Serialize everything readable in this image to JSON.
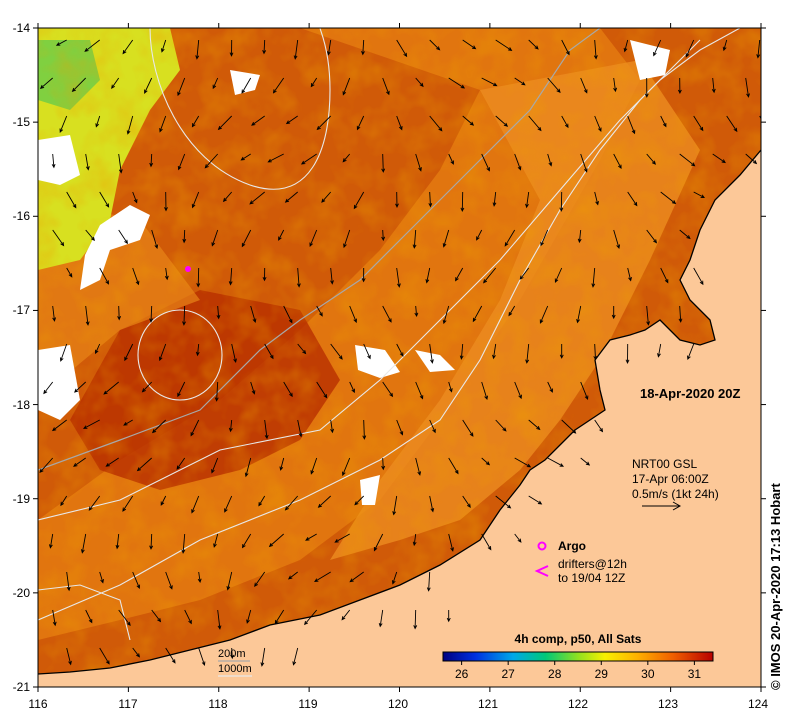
{
  "map": {
    "lon_ticks": [
      "116",
      "117",
      "118",
      "119",
      "120",
      "121",
      "122",
      "123",
      "124"
    ],
    "lat_ticks": [
      "-14",
      "-15",
      "-16",
      "-17",
      "-18",
      "-19",
      "-20",
      "-21"
    ],
    "lon_range": [
      116,
      124
    ],
    "lat_range": [
      -21,
      -14
    ],
    "timestamp": "18-Apr-2020 20Z",
    "current_legend": {
      "line1": "NRT00 GSL",
      "line2": "17-Apr 06:00Z",
      "line3": "0.5m/s (1kt 24h)"
    },
    "argo_label": "Argo",
    "drifters_line1": "drifters@12h",
    "drifters_line2": "to 19/04 12Z",
    "isobath_200": "200m",
    "isobath_1000": "1000m",
    "colorbar": {
      "title": "4h comp, p50, All Sats",
      "ticks": [
        "26",
        "27",
        "28",
        "29",
        "30",
        "31"
      ],
      "range": [
        25.6,
        31.4
      ]
    },
    "credit": "© IMOS 20-Apr-2020 17:13 Hobart",
    "colors": {
      "sst_warm": "#c83c00",
      "sst_mid": "#e07800",
      "sst_cool": "#f0b020",
      "land": "#fcc898",
      "cloud": "#ffffff",
      "argo": "#ff00ff"
    }
  }
}
